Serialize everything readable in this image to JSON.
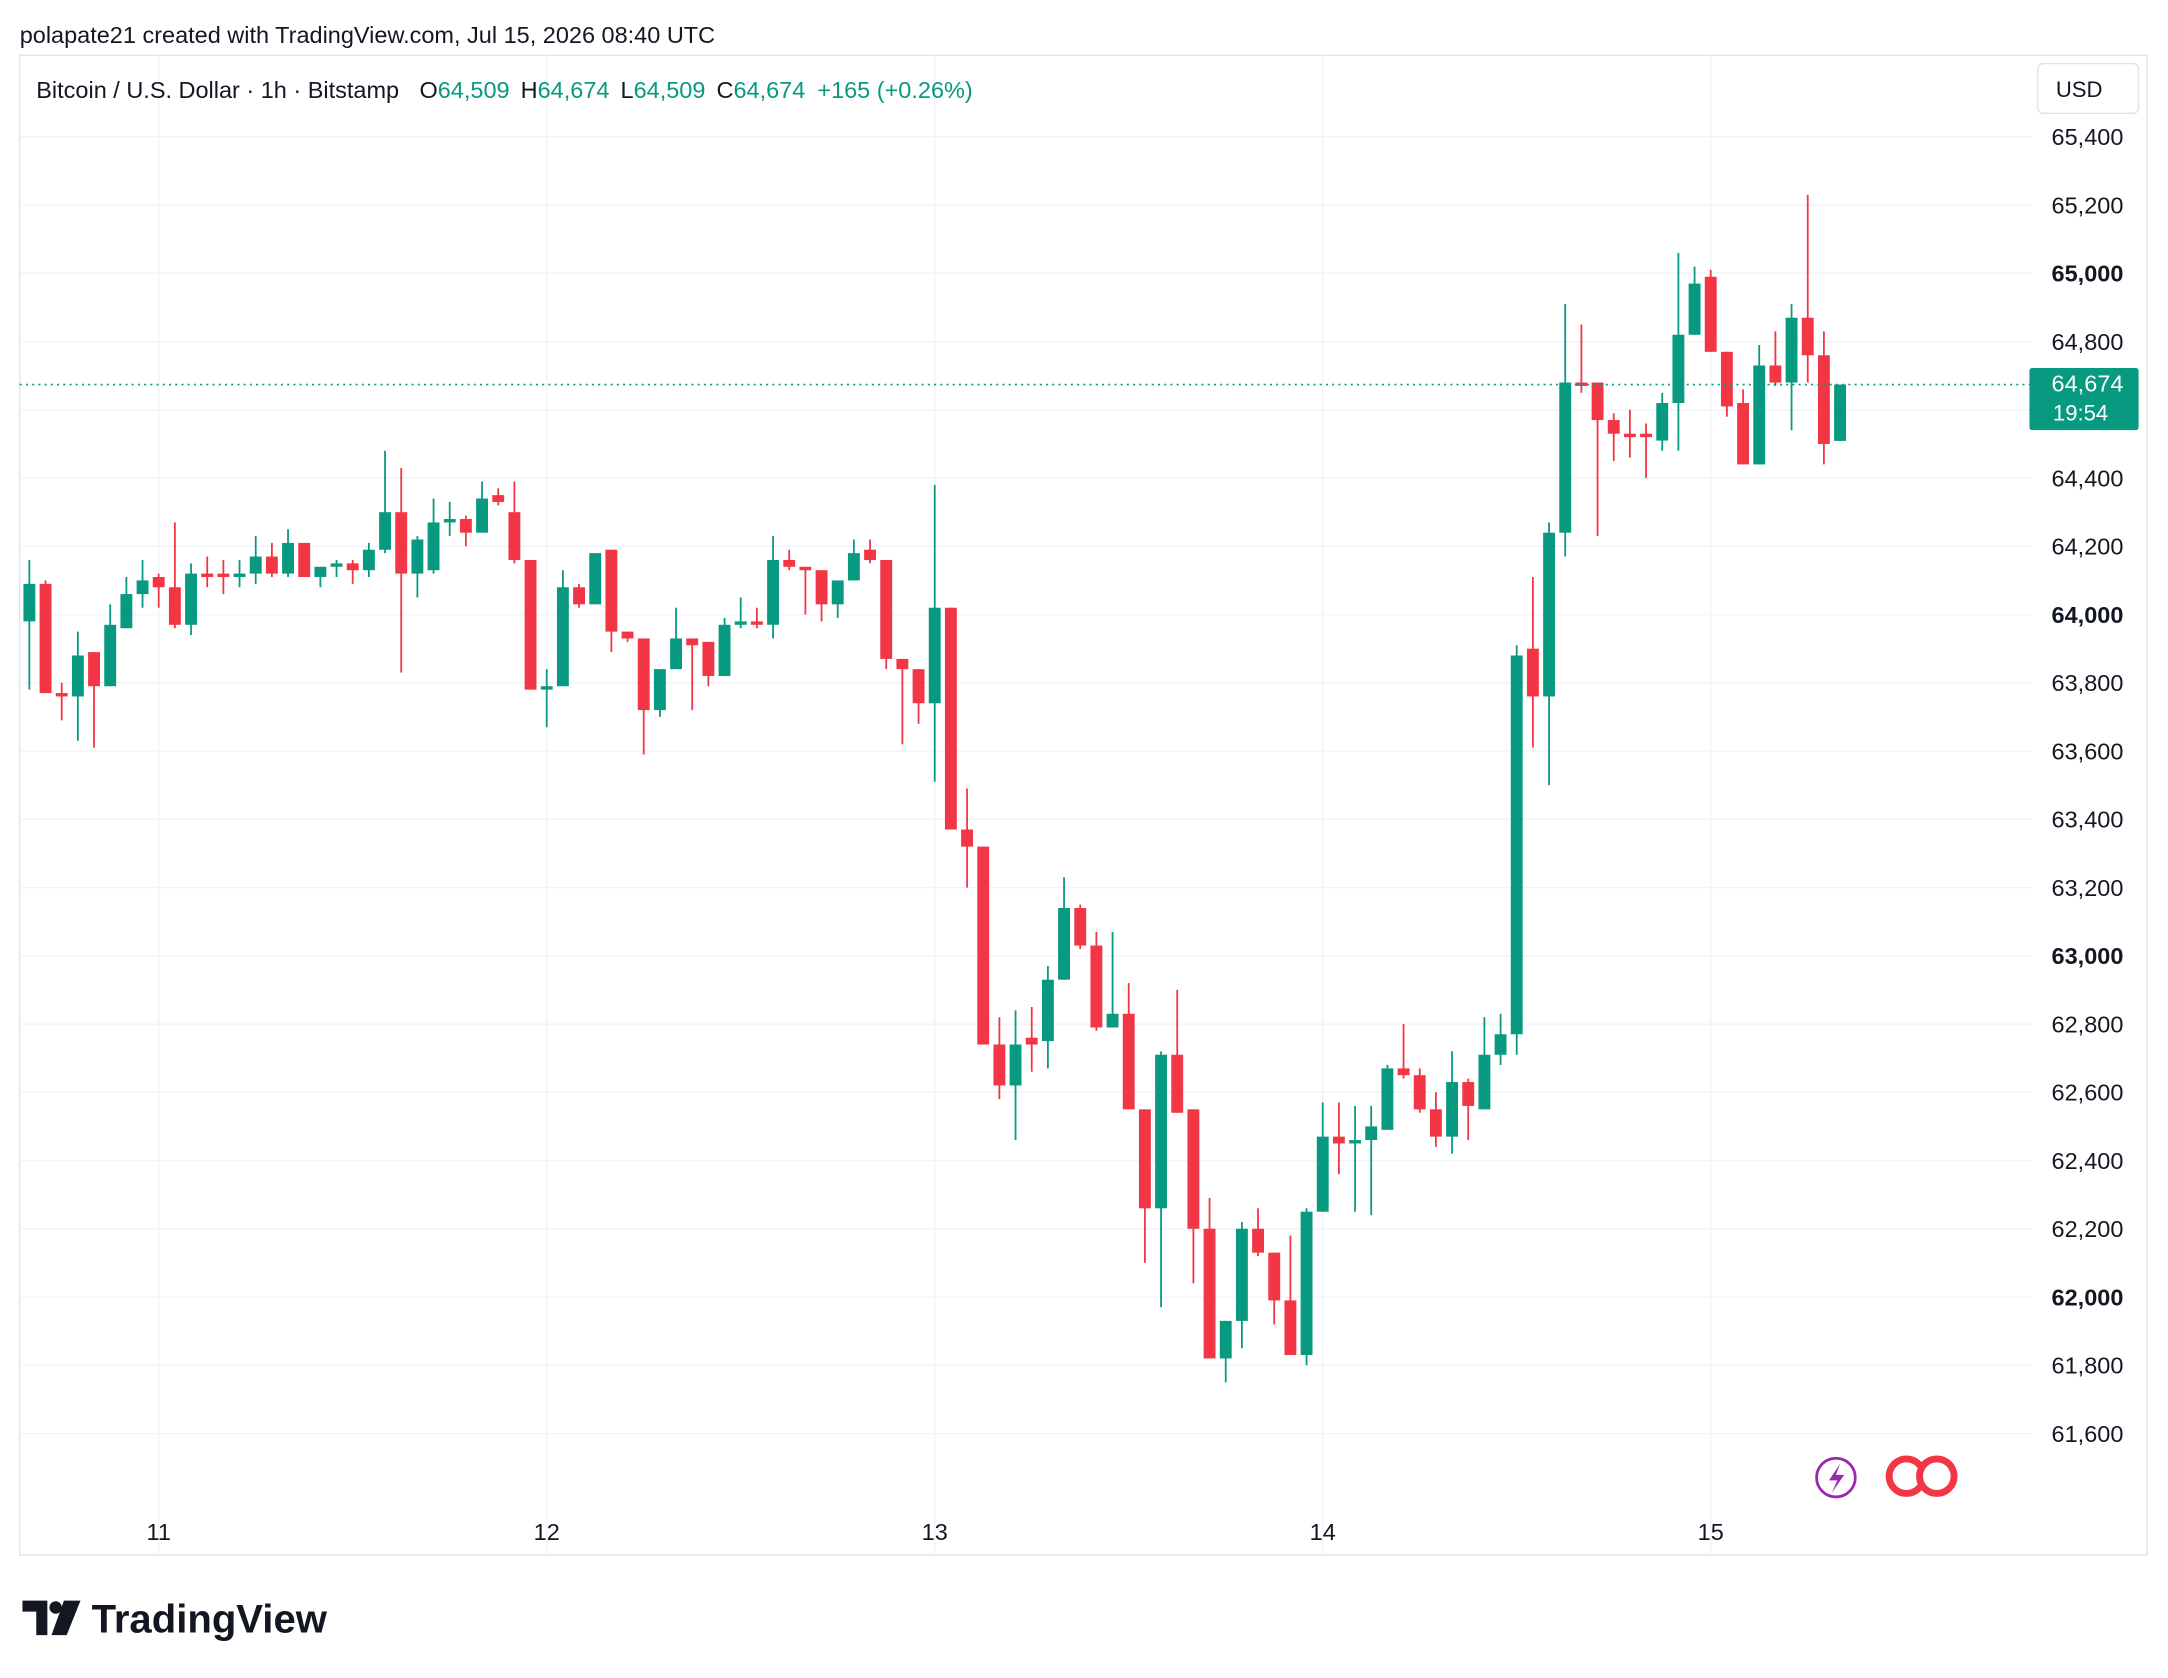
{
  "credit": "polapate21 created with TradingView.com, Jul 15, 2026 08:40 UTC",
  "logo": "TradingView",
  "chart_data": {
    "type": "candlestick",
    "symbol": "Bitcoin / U.S. Dollar · 1h · Bitstamp",
    "ohlc": [
      {
        "key": "O",
        "value": "64,509"
      },
      {
        "key": "H",
        "value": "64,674"
      },
      {
        "key": "L",
        "value": "64,509"
      },
      {
        "key": "C",
        "value": "64,674"
      }
    ],
    "change": "+165 (+0.26%)",
    "currency": "USD",
    "last_price": {
      "value": 64674,
      "label": "64,674"
    },
    "countdown": "19:54",
    "up_color": "#089981",
    "down_color": "#f23645",
    "grid": true,
    "categories": [
      null,
      null,
      null,
      null,
      null,
      null,
      null,
      null,
      "11",
      null,
      null,
      null,
      null,
      null,
      null,
      null,
      null,
      null,
      null,
      null,
      null,
      null,
      null,
      null,
      null,
      null,
      null,
      null,
      null,
      null,
      null,
      null,
      "12",
      null,
      null,
      null,
      null,
      null,
      null,
      null,
      null,
      null,
      null,
      null,
      null,
      null,
      null,
      null,
      null,
      null,
      null,
      null,
      null,
      null,
      null,
      null,
      "13",
      null,
      null,
      null,
      null,
      null,
      null,
      null,
      null,
      null,
      null,
      null,
      null,
      null,
      null,
      null,
      null,
      null,
      null,
      null,
      null,
      null,
      null,
      null,
      "14",
      null,
      null,
      null,
      null,
      null,
      null,
      null,
      null,
      null,
      null,
      null,
      null,
      null,
      null,
      null,
      null,
      null,
      null,
      null,
      null,
      null,
      null,
      null,
      "15",
      null,
      null,
      null,
      null,
      null,
      null,
      null,
      null
    ],
    "open": [
      63980,
      64090,
      63770,
      63760,
      63890,
      63790,
      63960,
      64060,
      64110,
      64080,
      63970,
      64120,
      64120,
      64110,
      64120,
      64170,
      64120,
      64210,
      64110,
      64140,
      64150,
      64130,
      64190,
      64300,
      64120,
      64130,
      64270,
      64280,
      64240,
      64350,
      64300,
      64160,
      63780,
      63790,
      64080,
      64030,
      64190,
      63950,
      63930,
      63720,
      63840,
      63930,
      63920,
      63820,
      63970,
      63980,
      63970,
      64160,
      64140,
      64130,
      64030,
      64100,
      64190,
      64160,
      63870,
      63840,
      63740,
      64020,
      63370,
      63320,
      62740,
      62620,
      62760,
      62750,
      62930,
      63140,
      63030,
      62790,
      62830,
      62550,
      62260,
      62710,
      62550,
      62200,
      61820,
      61930,
      62200,
      62130,
      61990,
      61830,
      62250,
      62470,
      62450,
      62460,
      62490,
      62670,
      62650,
      62550,
      62470,
      62630,
      62550,
      62710,
      62770,
      63900,
      63760,
      64240,
      64680,
      64680,
      64570,
      64530,
      64530,
      64510,
      64620,
      64820,
      64990,
      64770,
      64620,
      64440,
      64730,
      64680,
      64870,
      64760,
      64509
    ],
    "high": [
      64160,
      64100,
      63800,
      63950,
      63890,
      64030,
      64110,
      64160,
      64120,
      64270,
      64150,
      64170,
      64160,
      64160,
      64230,
      64210,
      64250,
      64210,
      64140,
      64160,
      64160,
      64210,
      64480,
      64430,
      64230,
      64340,
      64330,
      64290,
      64390,
      64370,
      64390,
      64160,
      63840,
      64130,
      64090,
      64180,
      64190,
      63950,
      63930,
      63840,
      64020,
      63930,
      63920,
      63990,
      64050,
      64020,
      64230,
      64190,
      64140,
      64130,
      64100,
      64220,
      64220,
      64160,
      63870,
      63840,
      64380,
      64020,
      63490,
      63320,
      62820,
      62840,
      62850,
      62970,
      63230,
      63150,
      63070,
      63070,
      62920,
      62550,
      62720,
      62900,
      62550,
      62290,
      61930,
      62220,
      62260,
      62130,
      62180,
      62260,
      62570,
      62570,
      62560,
      62560,
      62680,
      62800,
      62670,
      62600,
      62720,
      62640,
      62820,
      62830,
      63910,
      64110,
      64270,
      64910,
      64850,
      64680,
      64590,
      64600,
      64560,
      64650,
      65060,
      65020,
      65010,
      64770,
      64660,
      64790,
      64830,
      64910,
      65230,
      64830,
      64674
    ],
    "low": [
      63780,
      63770,
      63690,
      63630,
      63610,
      63790,
      63960,
      64020,
      64020,
      63960,
      63940,
      64080,
      64060,
      64080,
      64090,
      64110,
      64110,
      64110,
      64080,
      64110,
      64090,
      64110,
      64180,
      63830,
      64050,
      64120,
      64230,
      64200,
      64240,
      64320,
      64150,
      63780,
      63670,
      63790,
      64020,
      64030,
      63890,
      63920,
      63590,
      63700,
      63840,
      63720,
      63790,
      63820,
      63960,
      63960,
      63930,
      64130,
      64000,
      63980,
      63990,
      64100,
      64150,
      63840,
      63620,
      63680,
      63510,
      63370,
      63200,
      62740,
      62580,
      62460,
      62660,
      62670,
      62930,
      63020,
      62780,
      62790,
      62550,
      62100,
      61970,
      62540,
      62040,
      61820,
      61750,
      61850,
      62120,
      61920,
      61830,
      61800,
      62250,
      62360,
      62250,
      62240,
      62490,
      62640,
      62540,
      62440,
      62420,
      62460,
      62550,
      62680,
      62710,
      63610,
      63500,
      64170,
      64650,
      64230,
      64450,
      64460,
      64400,
      64480,
      64480,
      64820,
      64770,
      64580,
      64440,
      64440,
      64670,
      64540,
      64680,
      64440,
      64509
    ],
    "close": [
      64090,
      63770,
      63760,
      63880,
      63790,
      63970,
      64060,
      64100,
      64080,
      63970,
      64120,
      64110,
      64110,
      64120,
      64170,
      64120,
      64210,
      64110,
      64140,
      64150,
      64130,
      64190,
      64300,
      64120,
      64220,
      64270,
      64280,
      64240,
      64340,
      64330,
      64160,
      63780,
      63790,
      64080,
      64030,
      64180,
      63950,
      63930,
      63720,
      63840,
      63930,
      63910,
      63820,
      63970,
      63980,
      63970,
      64160,
      64140,
      64130,
      64030,
      64100,
      64180,
      64160,
      63870,
      63840,
      63740,
      64020,
      63370,
      63320,
      62740,
      62620,
      62740,
      62740,
      62930,
      63140,
      63030,
      62790,
      62830,
      62550,
      62260,
      62710,
      62540,
      62200,
      61820,
      61930,
      62200,
      62130,
      61990,
      61830,
      62250,
      62470,
      62450,
      62460,
      62500,
      62670,
      62650,
      62550,
      62470,
      62630,
      62560,
      62710,
      62770,
      63880,
      63760,
      64240,
      64680,
      64670,
      64570,
      64530,
      64520,
      64520,
      64620,
      64820,
      64970,
      64770,
      64610,
      64440,
      64730,
      64680,
      64870,
      64760,
      64500,
      64674
    ],
    "ylim": [
      61244,
      65639
    ],
    "yticks": [
      {
        "value": 61600,
        "label": "61,600"
      },
      {
        "value": 61800,
        "label": "61,800"
      },
      {
        "value": 62000,
        "label": "62,000",
        "bold": true
      },
      {
        "value": 62200,
        "label": "62,200"
      },
      {
        "value": 62400,
        "label": "62,400"
      },
      {
        "value": 62600,
        "label": "62,600"
      },
      {
        "value": 62800,
        "label": "62,800"
      },
      {
        "value": 63000,
        "label": "63,000",
        "bold": true
      },
      {
        "value": 63200,
        "label": "63,200"
      },
      {
        "value": 63400,
        "label": "63,400"
      },
      {
        "value": 63600,
        "label": "63,600"
      },
      {
        "value": 63800,
        "label": "63,800"
      },
      {
        "value": 64000,
        "label": "64,000",
        "bold": true
      },
      {
        "value": 64200,
        "label": "64,200"
      },
      {
        "value": 64400,
        "label": "64,400"
      },
      {
        "value": 64600,
        "label": "64,600"
      },
      {
        "value": 64800,
        "label": "64,800"
      },
      {
        "value": 65000,
        "label": "65,000",
        "bold": true
      },
      {
        "value": 65200,
        "label": "65,200"
      },
      {
        "value": 65400,
        "label": "65,400"
      }
    ]
  }
}
